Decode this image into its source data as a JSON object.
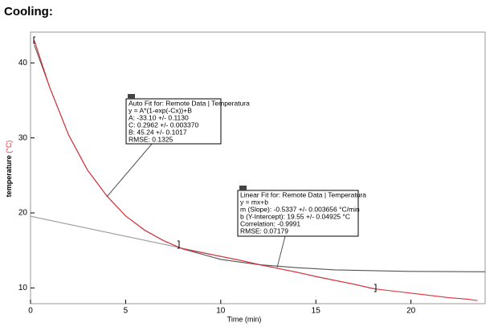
{
  "header": {
    "title": "Cooling:"
  },
  "chart_data": {
    "type": "line",
    "x_label": "Time (min)",
    "y_label": "temperature",
    "y_unit": "(°C)",
    "xlim": [
      0,
      23.9
    ],
    "ylim": [
      7.9,
      44.1
    ],
    "xticks": [
      0,
      5,
      10,
      15,
      20
    ],
    "yticks": [
      10,
      20,
      30,
      40
    ],
    "series": [
      {
        "color": "#e0303a",
        "x": [
          0.2,
          1,
          2,
          3,
          4,
          5,
          6,
          7,
          8,
          9,
          10,
          11,
          12,
          13,
          14,
          15,
          16,
          17,
          18,
          19,
          20,
          21,
          22,
          23,
          23.5
        ],
        "values": [
          43.0,
          36.8,
          30.4,
          25.7,
          22.3,
          19.6,
          17.7,
          16.3,
          15.2,
          14.7,
          14.2,
          13.7,
          13.1,
          12.6,
          12.1,
          11.5,
          11.0,
          10.5,
          9.9,
          9.6,
          9.3,
          9.0,
          8.7,
          8.5,
          8.3
        ]
      },
      {
        "color": "#555555",
        "x": [
          0.2,
          1,
          2,
          3,
          4,
          5,
          6,
          7,
          8,
          10,
          12,
          14,
          16,
          18,
          20,
          23.9
        ],
        "values": [
          42.4,
          36.8,
          30.4,
          25.7,
          22.3,
          19.6,
          17.7,
          16.3,
          15.2,
          13.8,
          13.1,
          12.7,
          12.4,
          12.3,
          12.2,
          12.15
        ]
      },
      {
        "color": "#9a9a9a",
        "x": [
          0,
          18.2
        ],
        "values": [
          19.55,
          9.84
        ]
      }
    ],
    "annotations": [
      {
        "lines": [
          "Auto Fit for: Remote Data | Temperatura",
          "y = A*(1-exp(-Cx))+B",
          "A: -33.10 +/- 0.1130",
          "C: 0.2962 +/- 0.003370",
          "B: 45.24 +/- 0.1017",
          "RMSE: 0.1325"
        ]
      },
      {
        "lines": [
          "Linear Fit for: Remote Data | Temperatura",
          "y = mx+b",
          "m (Slope): -0.5337 +/- 0.003656 °C/min",
          "b (Y-Intercept): 19.55 +/- 0.04925 °C",
          "Correlation: -0.9991",
          "RMSE: 0.07179"
        ]
      }
    ]
  }
}
